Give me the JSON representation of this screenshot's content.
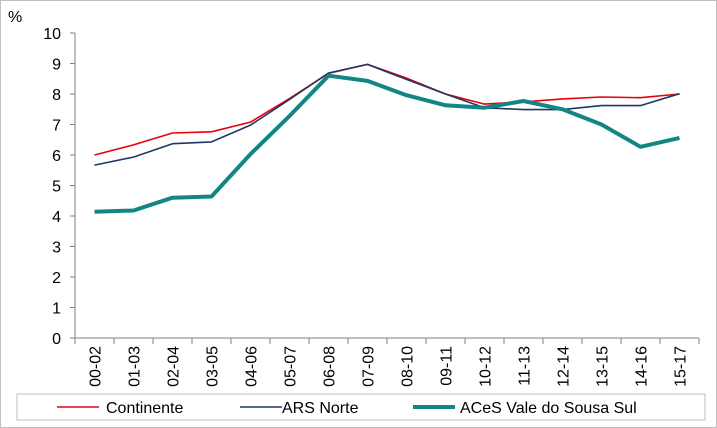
{
  "chart_data": {
    "type": "line",
    "title": "",
    "xlabel": "",
    "ylabel": "%",
    "ylim": [
      0,
      10
    ],
    "yticks": [
      0,
      1,
      2,
      3,
      4,
      5,
      6,
      7,
      8,
      9,
      10
    ],
    "grid": false,
    "legend_position": "bottom",
    "categories": [
      "00-02",
      "01-03",
      "02-04",
      "03-05",
      "04-06",
      "05-07",
      "06-08",
      "07-09",
      "08-10",
      "09-11",
      "10-12",
      "11-13",
      "12-14",
      "13-15",
      "14-16",
      "15-17"
    ],
    "series": [
      {
        "name": "Continente",
        "color": "#e8000b",
        "stroke_style": "thin",
        "values": [
          6.0,
          6.33,
          6.72,
          6.76,
          7.08,
          7.85,
          8.68,
          8.97,
          8.52,
          8.0,
          7.67,
          7.74,
          7.84,
          7.9,
          7.88,
          8.0
        ]
      },
      {
        "name": "ARS Norte",
        "color": "#1f3864",
        "stroke_style": "thin",
        "values": [
          5.67,
          5.93,
          6.37,
          6.43,
          6.98,
          7.82,
          8.69,
          8.97,
          8.48,
          8.0,
          7.55,
          7.49,
          7.49,
          7.62,
          7.62,
          8.01
        ]
      },
      {
        "name": "ACeS Vale do Sousa Sul",
        "color": "#138585",
        "stroke_style": "thick",
        "values": [
          4.14,
          4.18,
          4.6,
          4.64,
          6.03,
          7.28,
          8.6,
          8.43,
          7.96,
          7.63,
          7.55,
          7.77,
          7.5,
          7.0,
          6.27,
          6.56
        ]
      }
    ]
  }
}
